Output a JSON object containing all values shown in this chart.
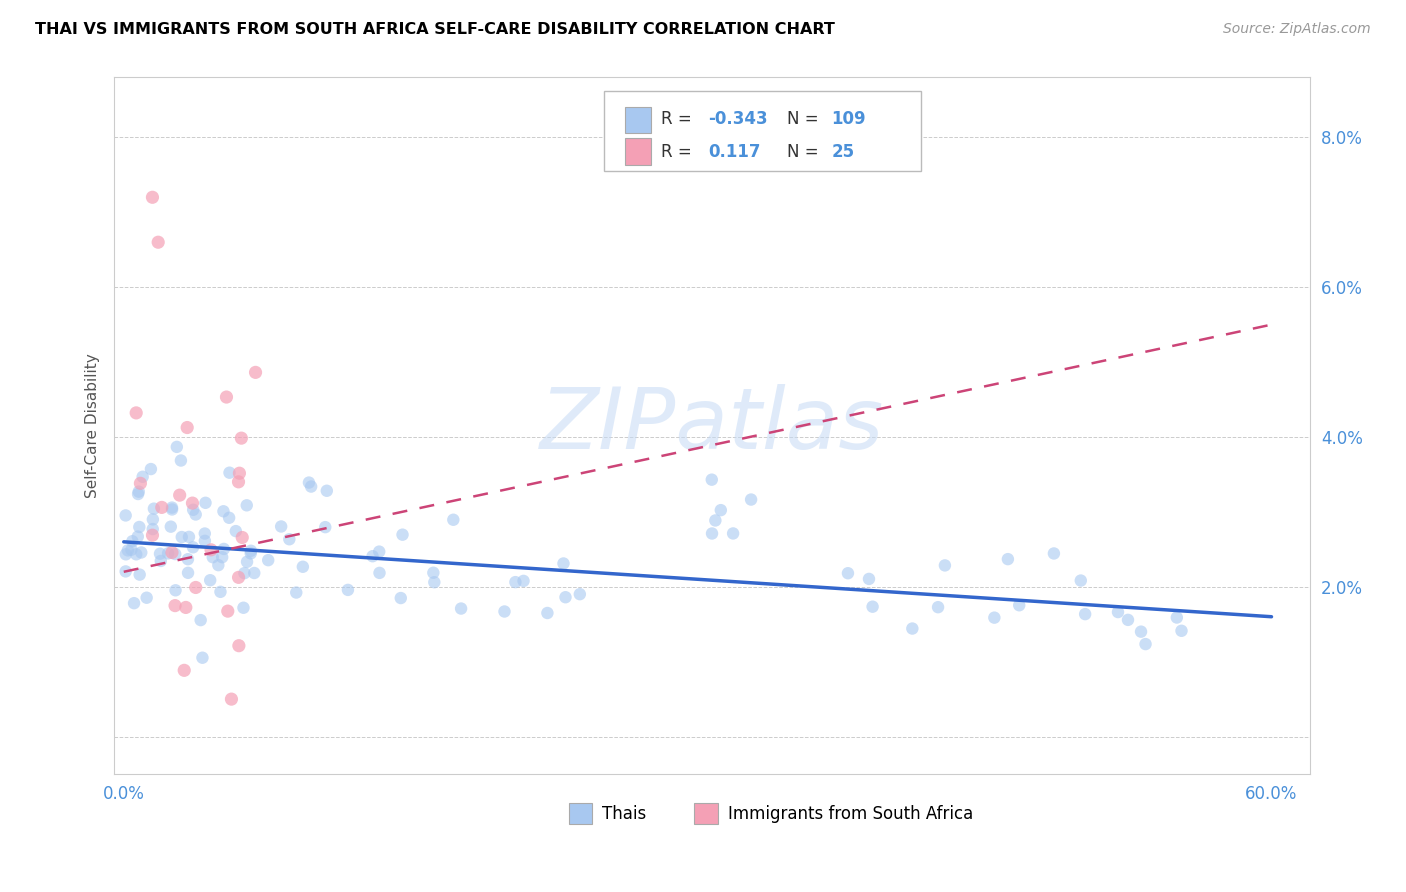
{
  "title": "THAI VS IMMIGRANTS FROM SOUTH AFRICA SELF-CARE DISABILITY CORRELATION CHART",
  "source": "Source: ZipAtlas.com",
  "ylabel": "Self-Care Disability",
  "xlim": [
    -0.005,
    0.62
  ],
  "ylim": [
    -0.005,
    0.088
  ],
  "yticks": [
    0.0,
    0.02,
    0.04,
    0.06,
    0.08
  ],
  "ytick_labels": [
    "",
    "2.0%",
    "4.0%",
    "6.0%",
    "8.0%"
  ],
  "xtick_vals": [
    0.0,
    0.6
  ],
  "xtick_labels": [
    "0.0%",
    "60.0%"
  ],
  "r_thai": -0.343,
  "n_thai": 109,
  "r_imm": 0.117,
  "n_imm": 25,
  "color_thai": "#a8c8f0",
  "color_immigrant": "#f4a0b5",
  "color_trend_thai": "#3366cc",
  "color_trend_immigrant": "#cc4477",
  "thai_trend_x": [
    0.0,
    0.6
  ],
  "thai_trend_y": [
    0.026,
    0.016
  ],
  "imm_trend_x": [
    0.0,
    0.6
  ],
  "imm_trend_y": [
    0.022,
    0.055
  ],
  "watermark_text": "ZIPatlas",
  "watermark_color": "#c5daf5",
  "grid_color": "#cccccc",
  "border_color": "#cccccc",
  "tick_label_color": "#4a90d9",
  "title_fontsize": 11.5,
  "source_fontsize": 10,
  "tick_fontsize": 12,
  "ylabel_fontsize": 11
}
